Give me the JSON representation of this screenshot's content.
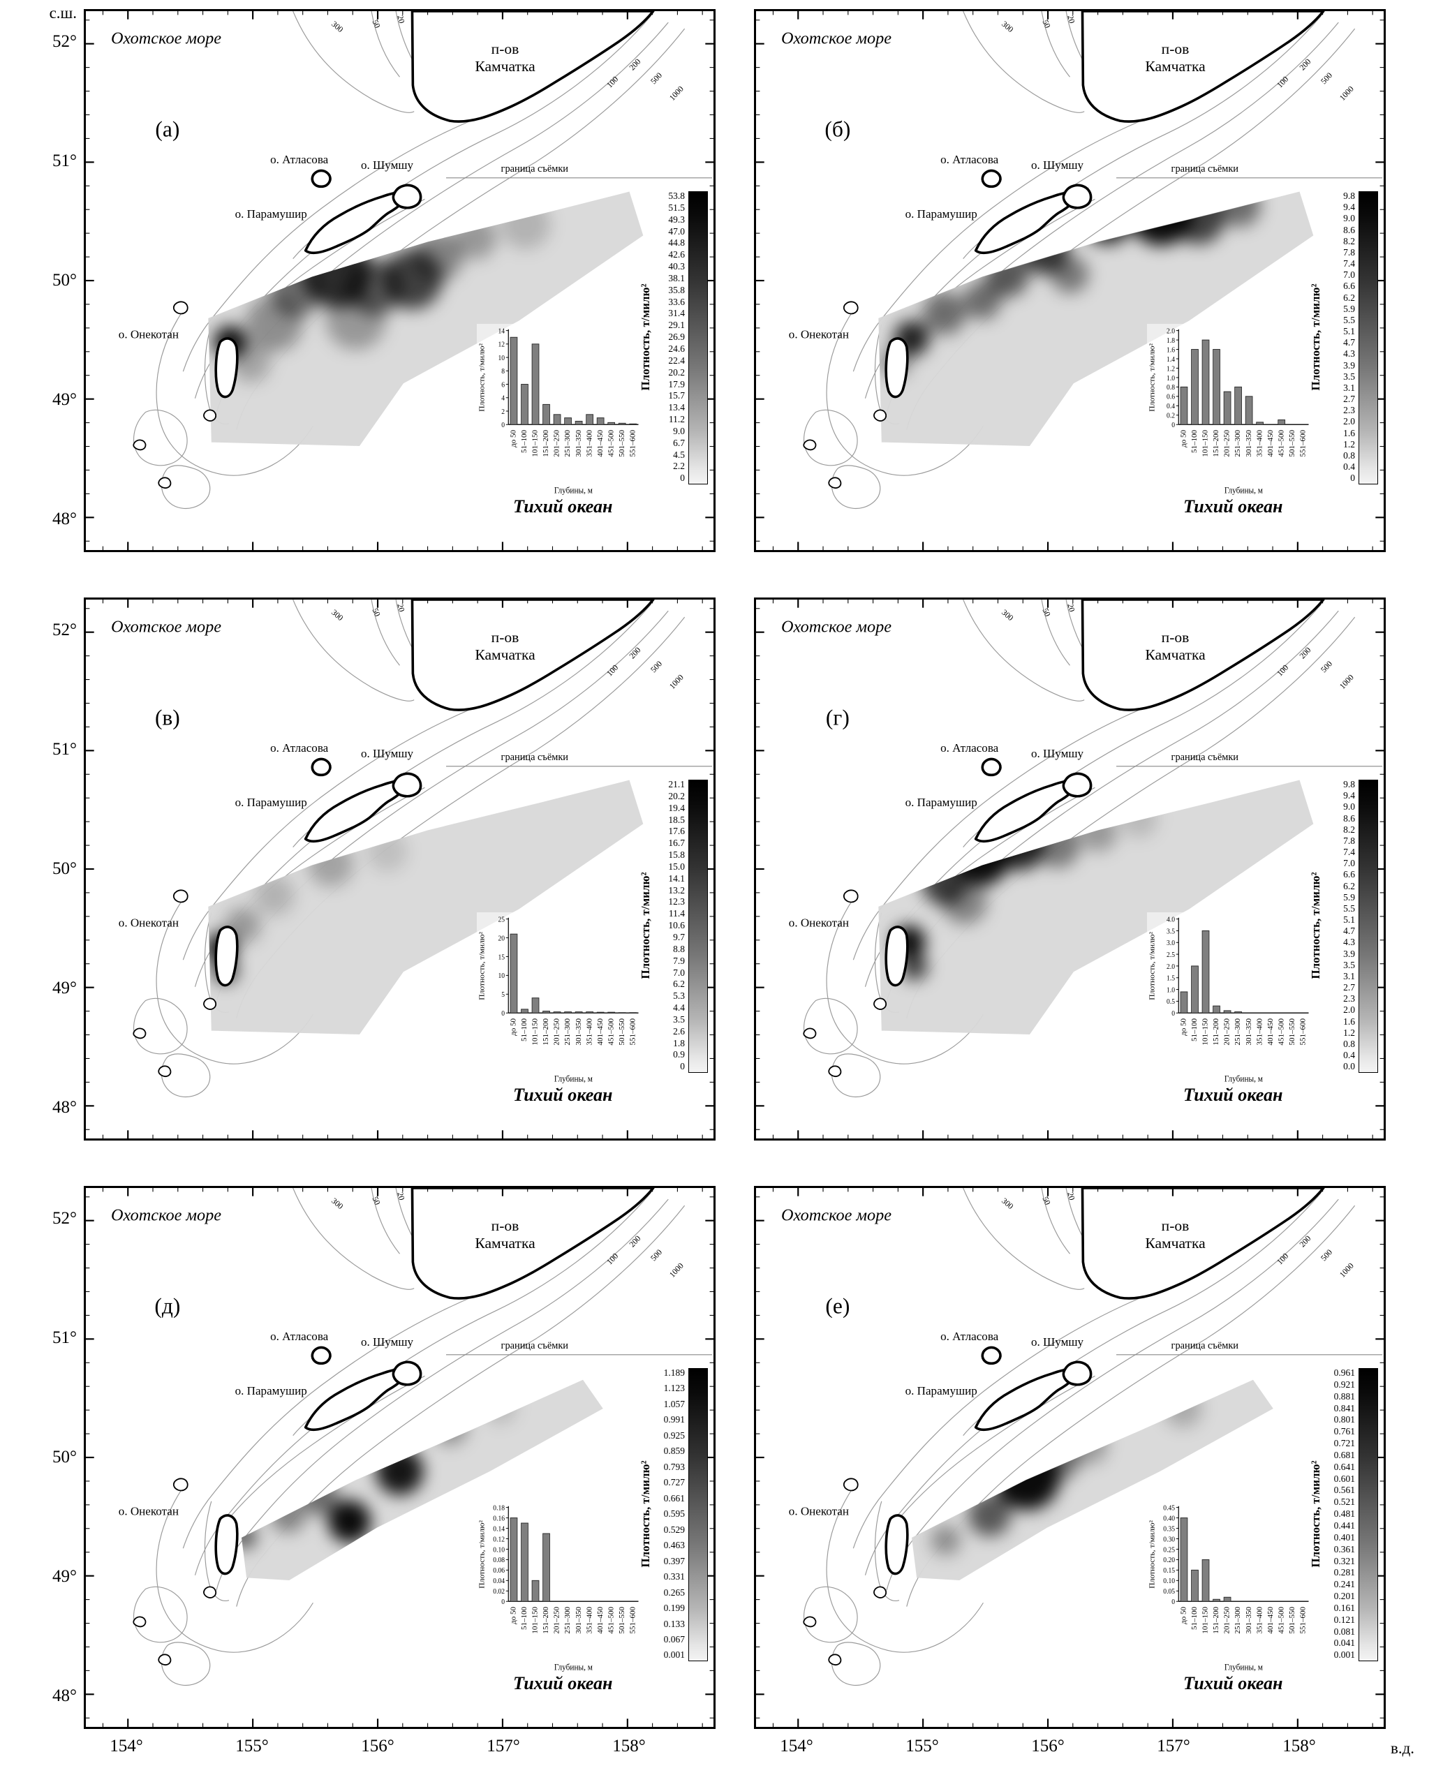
{
  "figure": {
    "lat_unit": "с.ш.",
    "lon_unit": "в.д.",
    "y_ticks": [
      "52°",
      "51°",
      "50°",
      "49°",
      "48°"
    ],
    "x_ticks": [
      "154°",
      "155°",
      "156°",
      "157°",
      "158°"
    ]
  },
  "map_labels": {
    "sea": "Охотское море",
    "peninsula_line1": "п-ов",
    "peninsula_line2": "Камчатка",
    "island_atlasova": "о. Атласова",
    "island_shumshu": "о. Шумшу",
    "island_paramushir": "о. Парамушир",
    "island_onekotan": "о. Онекотан",
    "survey_boundary": "граница съёмки",
    "ocean": "Тихий океан",
    "contour_300": "300",
    "contour_50": "50",
    "contour_20": "20",
    "contour_100": "100",
    "contour_200": "200",
    "contour_500": "500",
    "contour_1000": "1000"
  },
  "colorbar_label": "Плотность, т/милю²",
  "inset_axis": {
    "y_title": "Плотность, т/милю²",
    "x_title": "Глубины, м",
    "categories": [
      "до 50",
      "51–100",
      "101–150",
      "151–200",
      "201–250",
      "251–300",
      "301–350",
      "351–400",
      "401–450",
      "451–500",
      "501–550",
      "551–600"
    ]
  },
  "panels": [
    {
      "letter": "(а)",
      "band": "wide",
      "colorbar_ticks": [
        "53.8",
        "51.5",
        "49.3",
        "47.0",
        "44.8",
        "42.6",
        "40.3",
        "38.1",
        "35.8",
        "33.6",
        "31.4",
        "29.1",
        "26.9",
        "24.6",
        "22.4",
        "20.2",
        "17.9",
        "15.7",
        "13.4",
        "11.2",
        "9.0",
        "6.7",
        "4.5",
        "2.2",
        "0"
      ],
      "chart": {
        "type": "bar",
        "ymax": 14,
        "yticks": [
          "0",
          "2",
          "4",
          "6",
          "8",
          "10",
          "12",
          "14"
        ],
        "values": [
          13,
          6,
          12,
          3,
          1.5,
          1,
          0.5,
          1.5,
          1,
          0.3,
          0.2,
          0.1
        ]
      },
      "blobs": [
        [
          400,
          418,
          55,
          0.8
        ],
        [
          460,
          440,
          45,
          0.55
        ],
        [
          520,
          428,
          48,
          0.7
        ],
        [
          335,
          448,
          40,
          0.5
        ],
        [
          230,
          528,
          26,
          0.95
        ],
        [
          300,
          498,
          45,
          0.35
        ],
        [
          560,
          392,
          40,
          0.4
        ],
        [
          620,
          362,
          34,
          0.3
        ],
        [
          430,
          492,
          48,
          0.3
        ],
        [
          262,
          560,
          32,
          0.25
        ],
        [
          700,
          340,
          40,
          0.18
        ]
      ]
    },
    {
      "letter": "(б)",
      "band": "wide",
      "colorbar_ticks": [
        "9.8",
        "9.4",
        "9.0",
        "8.6",
        "8.2",
        "7.8",
        "7.4",
        "7.0",
        "6.6",
        "6.2",
        "5.9",
        "5.5",
        "5.1",
        "4.7",
        "4.3",
        "3.9",
        "3.5",
        "3.1",
        "2.7",
        "2.3",
        "2.0",
        "1.6",
        "1.2",
        "0.8",
        "0.4",
        "0"
      ],
      "chart": {
        "type": "bar",
        "ymax": 2.0,
        "yticks": [
          "0",
          "0.2",
          "0.4",
          "0.6",
          "0.8",
          "1.0",
          "1.2",
          "1.4",
          "1.6",
          "1.8",
          "2.0"
        ],
        "values": [
          0.8,
          1.6,
          1.8,
          1.6,
          0.7,
          0.8,
          0.6,
          0.05,
          0,
          0.1,
          0,
          0
        ]
      },
      "blobs": [
        [
          560,
          330,
          42,
          0.85
        ],
        [
          645,
          322,
          52,
          0.95
        ],
        [
          460,
          382,
          38,
          0.75
        ],
        [
          400,
          422,
          34,
          0.6
        ],
        [
          500,
          420,
          30,
          0.45
        ],
        [
          248,
          522,
          28,
          0.85
        ],
        [
          300,
          482,
          34,
          0.5
        ],
        [
          705,
          330,
          42,
          0.7
        ],
        [
          360,
          462,
          30,
          0.5
        ],
        [
          222,
          560,
          24,
          0.4
        ],
        [
          770,
          310,
          34,
          0.5
        ]
      ]
    },
    {
      "letter": "(в)",
      "band": "wide",
      "colorbar_ticks": [
        "21.1",
        "20.2",
        "19.4",
        "18.5",
        "17.6",
        "16.7",
        "15.8",
        "15.0",
        "14.1",
        "13.2",
        "12.3",
        "11.4",
        "10.6",
        "9.7",
        "8.8",
        "7.9",
        "7.0",
        "6.2",
        "5.3",
        "4.4",
        "3.5",
        "2.6",
        "1.8",
        "0.9",
        "0"
      ],
      "chart": {
        "type": "bar",
        "ymax": 25,
        "yticks": [
          "0",
          "5",
          "10",
          "15",
          "20",
          "25"
        ],
        "values": [
          21,
          1,
          4,
          0.5,
          0.3,
          0.3,
          0.3,
          0.3,
          0.2,
          0.2,
          0.1,
          0.1
        ]
      },
      "blobs": [
        [
          216,
          556,
          24,
          0.95
        ],
        [
          222,
          592,
          20,
          0.75
        ],
        [
          390,
          422,
          36,
          0.25
        ],
        [
          300,
          472,
          32,
          0.18
        ],
        [
          480,
          402,
          32,
          0.12
        ],
        [
          250,
          520,
          28,
          0.3
        ]
      ]
    },
    {
      "letter": "(г)",
      "band": "wide",
      "colorbar_ticks": [
        "9.8",
        "9.4",
        "9.0",
        "8.6",
        "8.2",
        "7.8",
        "7.4",
        "7.0",
        "6.6",
        "6.2",
        "5.9",
        "5.5",
        "5.1",
        "4.7",
        "4.3",
        "3.9",
        "3.5",
        "3.1",
        "2.7",
        "2.3",
        "2.0",
        "1.6",
        "1.2",
        "0.8",
        "0.4",
        "0.0"
      ],
      "chart": {
        "type": "bar",
        "ymax": 4.0,
        "yticks": [
          "0",
          "0.5",
          "1.0",
          "1.5",
          "2.0",
          "2.5",
          "3.0",
          "3.5",
          "4.0"
        ],
        "values": [
          0.9,
          2.0,
          3.5,
          0.3,
          0.1,
          0.05,
          0,
          0,
          0,
          0,
          0,
          0
        ]
      },
      "blobs": [
        [
          360,
          412,
          44,
          0.95
        ],
        [
          420,
          392,
          40,
          0.85
        ],
        [
          300,
          452,
          36,
          0.7
        ],
        [
          244,
          546,
          26,
          0.95
        ],
        [
          252,
          586,
          22,
          0.7
        ],
        [
          480,
          392,
          36,
          0.45
        ],
        [
          545,
          372,
          30,
          0.3
        ],
        [
          332,
          482,
          36,
          0.4
        ],
        [
          610,
          350,
          30,
          0.15
        ]
      ]
    },
    {
      "letter": "(д)",
      "band": "narrow",
      "colorbar_ticks": [
        "1.189",
        "1.123",
        "1.057",
        "0.991",
        "0.925",
        "0.859",
        "0.793",
        "0.727",
        "0.661",
        "0.595",
        "0.529",
        "0.463",
        "0.397",
        "0.331",
        "0.265",
        "0.199",
        "0.133",
        "0.067",
        "0.001"
      ],
      "chart": {
        "type": "bar",
        "ymax": 0.18,
        "yticks": [
          "0",
          "0.02",
          "0.04",
          "0.06",
          "0.08",
          "0.10",
          "0.12",
          "0.14",
          "0.16",
          "0.18"
        ],
        "values": [
          0.16,
          0.15,
          0.04,
          0.13,
          0,
          0,
          0,
          0,
          0,
          0,
          0,
          0
        ]
      },
      "blobs": [
        [
          500,
          452,
          38,
          0.9
        ],
        [
          420,
          532,
          34,
          0.95
        ],
        [
          372,
          492,
          30,
          0.5
        ],
        [
          252,
          556,
          20,
          0.6
        ],
        [
          580,
          382,
          28,
          0.35
        ],
        [
          322,
          522,
          28,
          0.4
        ],
        [
          660,
          350,
          26,
          0.15
        ]
      ]
    },
    {
      "letter": "(е)",
      "band": "narrow",
      "colorbar_ticks": [
        "0.961",
        "0.921",
        "0.881",
        "0.841",
        "0.801",
        "0.761",
        "0.721",
        "0.681",
        "0.641",
        "0.601",
        "0.561",
        "0.521",
        "0.481",
        "0.441",
        "0.401",
        "0.361",
        "0.321",
        "0.281",
        "0.241",
        "0.201",
        "0.161",
        "0.121",
        "0.081",
        "0.041",
        "0.001"
      ],
      "chart": {
        "type": "bar",
        "ymax": 0.45,
        "yticks": [
          "0",
          "0.05",
          "0.10",
          "0.15",
          "0.20",
          "0.25",
          "0.30",
          "0.35",
          "0.40",
          "0.45"
        ],
        "values": [
          0.4,
          0.15,
          0.2,
          0.01,
          0.02,
          0,
          0,
          0,
          0,
          0,
          0,
          0
        ]
      },
      "blobs": [
        [
          432,
          462,
          52,
          0.95
        ],
        [
          372,
          522,
          34,
          0.6
        ],
        [
          482,
          432,
          34,
          0.5
        ],
        [
          680,
          352,
          30,
          0.22
        ],
        [
          302,
          562,
          24,
          0.35
        ],
        [
          530,
          410,
          30,
          0.3
        ]
      ]
    }
  ]
}
